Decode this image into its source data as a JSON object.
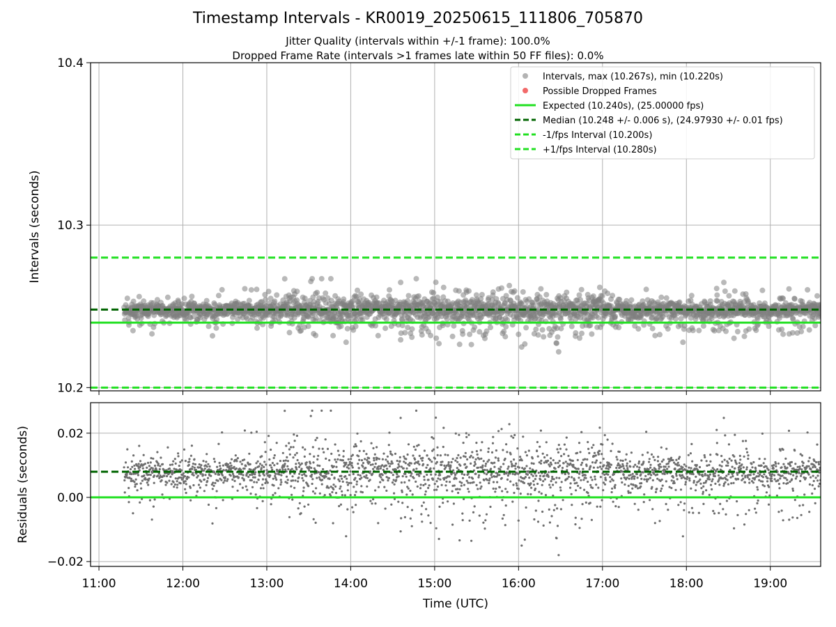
{
  "chart_data": {
    "type": "scatter",
    "title": "Timestamp Intervals - KR0019_20250615_111806_705870",
    "subtitle_1": "Jitter Quality (intervals within +/-1 frame): 100.0%",
    "subtitle_2": "Dropped Frame Rate (intervals >1 frames late within 50 FF files): 0.0%",
    "xlabel": "Time (UTC)",
    "x_range_hours": [
      10.9,
      19.6
    ],
    "x_ticks": [
      "11:00",
      "12:00",
      "13:00",
      "14:00",
      "15:00",
      "16:00",
      "17:00",
      "18:00",
      "19:00"
    ],
    "data_span_hours": [
      11.3,
      19.6
    ],
    "top_panel": {
      "ylabel": "Intervals (seconds)",
      "ylim": [
        10.198,
        10.4
      ],
      "y_ticks": [
        "10.2",
        "10.3",
        "10.4"
      ],
      "y_tick_values": [
        10.2,
        10.3,
        10.4
      ],
      "grid": true,
      "expected": 10.24,
      "median": 10.248,
      "minus_interval": 10.2,
      "plus_interval": 10.28,
      "interval_max": 10.267,
      "interval_min": 10.22,
      "point_count": 2400
    },
    "bottom_panel": {
      "ylabel": "Residuals (seconds)",
      "ylim": [
        -0.0215,
        0.0295
      ],
      "y_ticks": [
        "−0.02",
        "0.00",
        "0.02"
      ],
      "y_tick_values": [
        -0.02,
        0.0,
        0.02
      ],
      "grid": true,
      "zero_line": 0.0,
      "median_residual": 0.008
    },
    "legend": {
      "placement": "top-right",
      "entries": [
        "Intervals, max (10.267s), min (10.220s)",
        "Possible Dropped Frames",
        "Expected (10.240s), (25.00000 fps)",
        "Median (10.248 +/- 0.006 s), (24.97930 +/- 0.01 fps)",
        "-1/fps Interval (10.200s)",
        "+1/fps Interval (10.280s)"
      ]
    },
    "colors": {
      "points": "#808080",
      "dropped": "#f05050",
      "expected": "#22e022",
      "median": "#006400",
      "interval_lines": "#22e022"
    }
  }
}
